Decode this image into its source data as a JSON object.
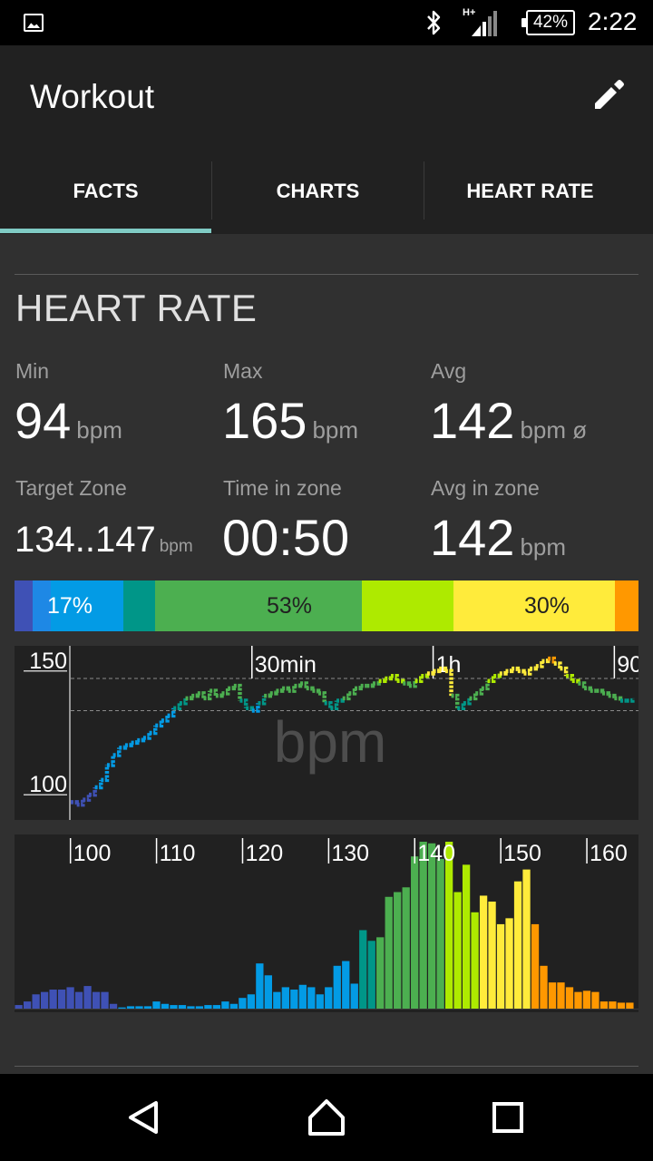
{
  "status_bar": {
    "image_icon": "image-notification-icon",
    "bluetooth_icon": "bluetooth-icon",
    "network_type": "H+",
    "battery_text": "42%",
    "time": "2:22"
  },
  "app_bar": {
    "title": "Workout",
    "edit_icon": "pencil-icon",
    "tabs": [
      {
        "label": "FACTS",
        "selected": true
      },
      {
        "label": "CHARTS",
        "selected": false
      },
      {
        "label": "HEART RATE",
        "selected": false
      }
    ],
    "indicator_color": "#80cbc4"
  },
  "heart_rate": {
    "title": "HEART RATE",
    "min": {
      "label": "Min",
      "value": "94",
      "unit": "bpm"
    },
    "max": {
      "label": "Max",
      "value": "165",
      "unit": "bpm"
    },
    "avg": {
      "label": "Avg",
      "value": "142",
      "unit": "bpm ø"
    },
    "target_zone": {
      "label": "Target Zone",
      "value": "134..147",
      "unit": "bpm"
    },
    "time_in_zone": {
      "label": "Time in zone",
      "value": "00:50"
    },
    "avg_in_zone": {
      "label": "Avg in zone",
      "value": "142",
      "unit": "bpm"
    }
  },
  "zone_bar": {
    "segments": [
      {
        "color": "#3f51b5",
        "fraction": 0.029
      },
      {
        "color": "#1e88e5",
        "fraction": 0.028
      },
      {
        "color": "#039be5",
        "fraction": 0.116
      },
      {
        "color": "#009688",
        "fraction": 0.052
      },
      {
        "color": "#4caf50",
        "fraction": 0.331
      },
      {
        "color": "#aeea00",
        "fraction": 0.147
      },
      {
        "color": "#ffeb3b",
        "fraction": 0.258
      },
      {
        "color": "#ff9800",
        "fraction": 0.039
      }
    ],
    "labels": [
      {
        "text": "17%",
        "color": "#ffffff"
      },
      {
        "text": "53%",
        "color": "#212121"
      },
      {
        "text": "30%",
        "color": "#212121"
      }
    ]
  },
  "chart_data": [
    {
      "type": "line",
      "watermark": "bpm",
      "ytick_labels": [
        "150",
        "100"
      ],
      "yticks": [
        150,
        100
      ],
      "time_labels": [
        "30min",
        "1h",
        "90"
      ],
      "time_ticks": [
        30,
        60,
        90
      ],
      "xlim": [
        0,
        94
      ],
      "ylim": [
        92,
        158
      ],
      "reference_lines": [
        134,
        147
      ],
      "x": [
        0,
        1,
        2,
        3,
        4,
        5,
        6,
        7,
        8,
        9,
        10,
        11,
        12,
        13,
        14,
        15,
        16,
        17,
        18,
        19,
        20,
        21,
        22,
        23,
        24,
        25,
        26,
        27,
        28,
        29,
        30,
        31,
        32,
        33,
        34,
        35,
        36,
        37,
        38,
        39,
        40,
        41,
        42,
        43,
        44,
        45,
        46,
        47,
        48,
        49,
        50,
        51,
        52,
        53,
        54,
        55,
        56,
        57,
        58,
        59,
        60,
        61,
        62,
        63,
        64,
        65,
        66,
        67,
        68,
        69,
        70,
        71,
        72,
        73,
        74,
        75,
        76,
        77,
        78,
        79,
        80,
        81,
        82,
        83,
        84,
        85,
        86,
        87,
        88,
        89,
        90,
        91,
        92,
        93
      ],
      "y": [
        97,
        96,
        98,
        100,
        103,
        106,
        112,
        116,
        119,
        120,
        121,
        122,
        123,
        125,
        128,
        130,
        132,
        135,
        137,
        139,
        140,
        141,
        139,
        142,
        140,
        141,
        143,
        144,
        138,
        135,
        134,
        137,
        140,
        141,
        142,
        143,
        142,
        144,
        145,
        143,
        142,
        141,
        137,
        135,
        138,
        139,
        141,
        143,
        144,
        144,
        145,
        146,
        147,
        148,
        146,
        145,
        144,
        146,
        148,
        149,
        150,
        151,
        150,
        140,
        135,
        137,
        139,
        141,
        143,
        146,
        148,
        149,
        150,
        151,
        150,
        149,
        151,
        152,
        154,
        155,
        153,
        151,
        148,
        146,
        145,
        143,
        142,
        142,
        141,
        140,
        139,
        138,
        138,
        139
      ],
      "zone_colors": [
        {
          "max": 100,
          "color": "#3f51b5"
        },
        {
          "max": 134,
          "color": "#039be5"
        },
        {
          "max": 138,
          "color": "#009688"
        },
        {
          "max": 145,
          "color": "#4caf50"
        },
        {
          "max": 148,
          "color": "#aeea00"
        },
        {
          "max": 154,
          "color": "#ffeb3b"
        },
        {
          "max": 200,
          "color": "#ff9800"
        }
      ]
    },
    {
      "type": "bar",
      "xtick_labels": [
        "100",
        "110",
        "120",
        "130",
        "140",
        "150",
        "160"
      ],
      "xticks": [
        100,
        110,
        120,
        130,
        140,
        150,
        160
      ],
      "xlim": [
        93.5,
        166
      ],
      "ylim": [
        0,
        160
      ],
      "categories": [
        94,
        95,
        96,
        97,
        98,
        99,
        100,
        101,
        102,
        103,
        104,
        105,
        106,
        107,
        108,
        109,
        110,
        111,
        112,
        113,
        114,
        115,
        116,
        117,
        118,
        119,
        120,
        121,
        122,
        123,
        124,
        125,
        126,
        127,
        128,
        129,
        130,
        131,
        132,
        133,
        134,
        135,
        136,
        137,
        138,
        139,
        140,
        141,
        142,
        143,
        144,
        145,
        146,
        147,
        148,
        149,
        150,
        151,
        152,
        153,
        154,
        155,
        156,
        157,
        158,
        159,
        160,
        161,
        162,
        163,
        164,
        165
      ],
      "values": [
        3,
        6,
        12,
        14,
        16,
        16,
        18,
        14,
        19,
        14,
        14,
        4,
        1,
        2,
        2,
        2,
        6,
        4,
        3,
        3,
        2,
        2,
        3,
        3,
        6,
        4,
        9,
        12,
        38,
        28,
        14,
        18,
        16,
        20,
        18,
        12,
        18,
        36,
        40,
        21,
        66,
        57,
        60,
        94,
        98,
        102,
        128,
        158,
        139,
        126,
        153,
        98,
        121,
        81,
        95,
        90,
        71,
        76,
        107,
        117,
        71,
        36,
        22,
        22,
        18,
        14,
        15,
        14,
        6,
        6,
        5,
        5
      ],
      "bar_colors": [
        {
          "max": 105,
          "color": "#3f51b5"
        },
        {
          "max": 133,
          "color": "#039be5"
        },
        {
          "max": 135,
          "color": "#009688"
        },
        {
          "max": 143,
          "color": "#4caf50"
        },
        {
          "max": 147,
          "color": "#aeea00"
        },
        {
          "max": 153,
          "color": "#ffeb3b"
        },
        {
          "max": 200,
          "color": "#ff9800"
        }
      ]
    }
  ],
  "nav_bar": {
    "back_icon": "back-icon",
    "home_icon": "home-icon",
    "recents_icon": "recents-icon"
  }
}
